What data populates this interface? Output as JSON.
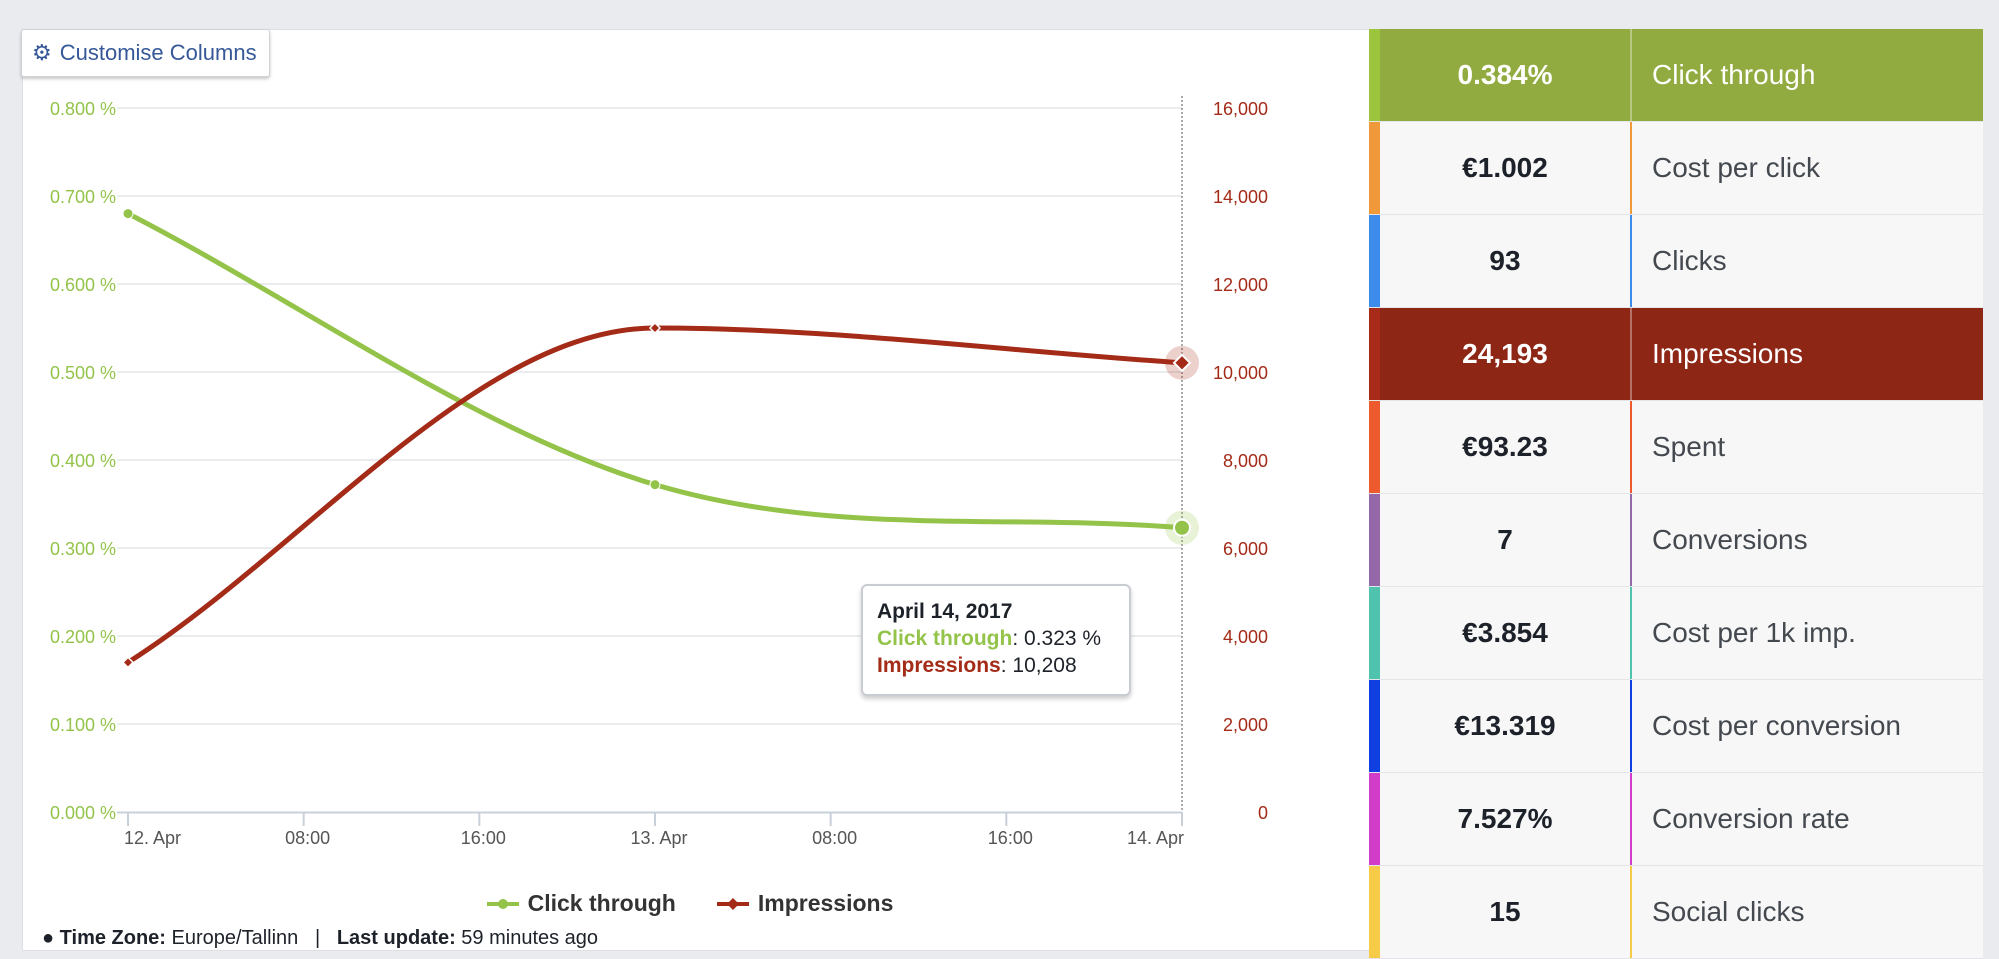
{
  "customise": {
    "label": "Customise Columns",
    "icon": "gear-icon"
  },
  "tooltip": {
    "date": "April 14, 2017",
    "series1_label": "Click through",
    "series1_value": ": 0.323 %",
    "series2_label": "Impressions",
    "series2_value": ": 10,208"
  },
  "footer": {
    "tz_label": "Time Zone:",
    "tz_value": "Europe/Tallinn",
    "sep": "|",
    "update_label": "Last update:",
    "update_value": "59 minutes ago"
  },
  "chart_data": {
    "type": "line",
    "left_axis_ticks": [
      "0.000 %",
      "0.100 %",
      "0.200 %",
      "0.300 %",
      "0.400 %",
      "0.500 %",
      "0.600 %",
      "0.700 %",
      "0.800 %"
    ],
    "right_axis_ticks": [
      "0",
      "2,000",
      "4,000",
      "6,000",
      "8,000",
      "10,000",
      "12,000",
      "14,000",
      "16,000"
    ],
    "x_ticks": [
      "12. Apr",
      "08:00",
      "16:00",
      "13. Apr",
      "08:00",
      "16:00",
      "14. Apr"
    ],
    "x_tick_hours": [
      0,
      8,
      16,
      24,
      32,
      40,
      48
    ],
    "ylim_left": [
      0,
      0.8
    ],
    "ylim_right": [
      0,
      16000
    ],
    "xlim_hours": [
      0,
      48
    ],
    "series": [
      {
        "name": "Click through",
        "axis": "left",
        "color": "#94c34a",
        "x_hours": [
          0,
          24,
          48
        ],
        "values": [
          0.68,
          0.372,
          0.323
        ]
      },
      {
        "name": "Impressions",
        "axis": "right",
        "color": "#a32b17",
        "x_hours": [
          0,
          24,
          48
        ],
        "values": [
          3400,
          11000,
          10208
        ]
      }
    ],
    "highlight_x_hours": 48,
    "legend_position": "bottom"
  },
  "metrics": [
    {
      "value": "0.384%",
      "label": "Click through",
      "color": "#92ab40",
      "active": true,
      "stripe": "#9cc43c"
    },
    {
      "value": "€1.002",
      "label": "Cost per click",
      "color": "#f0993a",
      "active": false
    },
    {
      "value": "93",
      "label": "Clicks",
      "color": "#3d8bea",
      "active": false
    },
    {
      "value": "24,193",
      "label": "Impressions",
      "color": "#8e2616",
      "active": true,
      "stripe": "#a72b18"
    },
    {
      "value": "€93.23",
      "label": "Spent",
      "color": "#ed5a2e",
      "active": false
    },
    {
      "value": "7",
      "label": "Conversions",
      "color": "#9467a8",
      "active": false
    },
    {
      "value": "€3.854",
      "label": "Cost per 1k imp.",
      "color": "#4fc3ad",
      "active": false
    },
    {
      "value": "€13.319",
      "label": "Cost per conversion",
      "color": "#0f3fe0",
      "active": false
    },
    {
      "value": "7.527%",
      "label": "Conversion rate",
      "color": "#d13cc8",
      "active": false
    },
    {
      "value": "15",
      "label": "Social clicks",
      "color": "#f6cb48",
      "active": false
    }
  ]
}
